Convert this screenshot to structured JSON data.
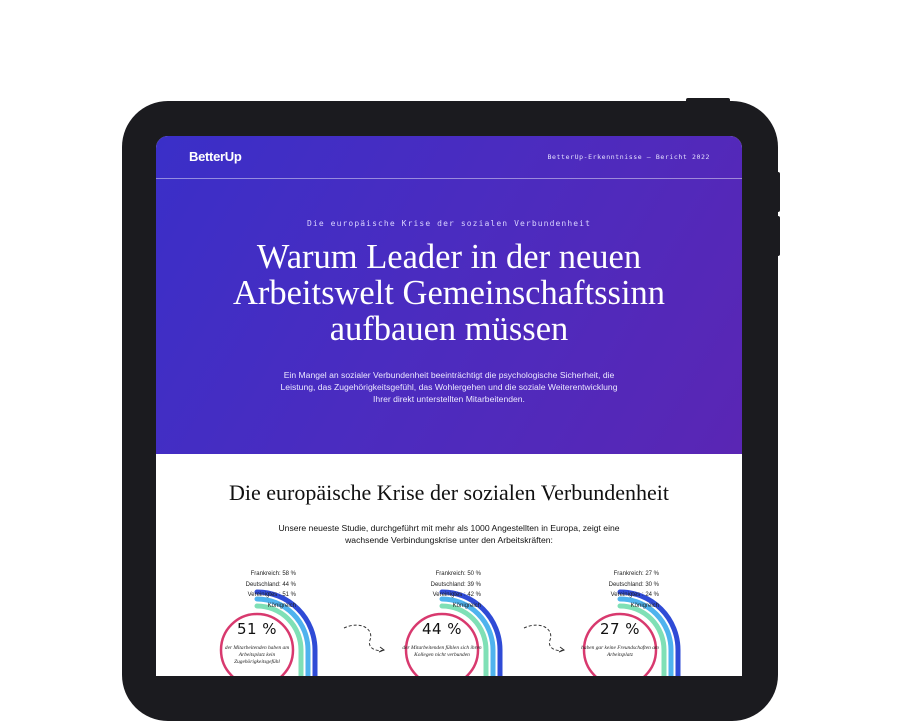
{
  "header": {
    "logo": "BetterUp",
    "report_label": "BetterUp-Erkenntnisse – Bericht 2022"
  },
  "hero": {
    "eyebrow": "Die europäische Krise der sozialen Verbundenheit",
    "headline_line1": "Warum Leader in der neuen",
    "headline_line2": "Arbeitswelt Gemeinschaftssinn",
    "headline_line3": "aufbauen müssen",
    "intro": "Ein Mangel an sozialer Verbundenheit beeinträchtigt die psychologische Sicherheit, die Leistung, das Zugehörigkeitsgefühl, das Wohlergehen und die soziale Weiterentwicklung Ihrer direkt unterstellten Mitarbeitenden."
  },
  "section": {
    "title": "Die europäische Krise der sozialen Verbundenheit",
    "lead": "Unsere neueste Studie, durchgeführt mit mehr als 1000 Angestellten in Europa, zeigt eine wachsende Verbindungskrise unter den Arbeitskräften:"
  },
  "stats": [
    {
      "legend": [
        "Frankreich: 58 %",
        "Deutschland: 44 %",
        "Vereinigtes : 51 %",
        "Königreich"
      ],
      "value": "51 %",
      "fraction": 0.51,
      "caption": "der Mitarbeitenden haben am Arbeitsplatz kein Zugehörigkeitsgefühl"
    },
    {
      "legend": [
        "Frankreich: 50 %",
        "Deutschland: 39 %",
        "Vereinigtes : 42 %",
        "Königreich"
      ],
      "value": "44 %",
      "fraction": 0.44,
      "caption": "der Mitarbeitenden fühlen sich ihren Kollegen nicht verbunden"
    },
    {
      "legend": [
        "Frankreich: 27 %",
        "Deutschland: 30 %",
        "Vereinigtes : 24 %",
        "Königreich"
      ],
      "value": "27 %",
      "fraction": 0.27,
      "caption": "haben gar keine Freundschaften am Arbeitsplatz"
    }
  ],
  "colors": {
    "hero_start": "#3a2fc8",
    "hero_end": "#5a26b4",
    "ring_blue": "#2f4bd6",
    "ring_sky": "#4fb3ee",
    "ring_mint": "#7fe0b6",
    "inner_ring": "#d8396e"
  }
}
